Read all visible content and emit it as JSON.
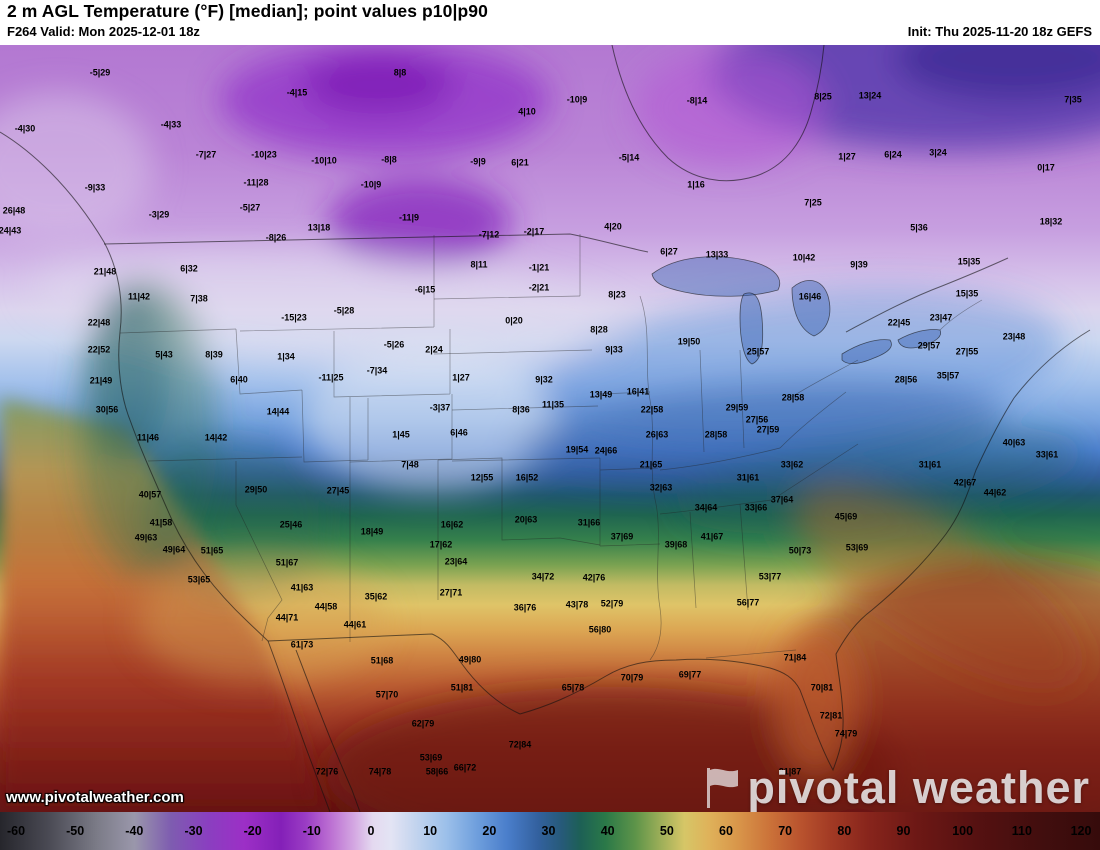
{
  "header": {
    "title": "2 m AGL Temperature (°F) [median]; point values p10|p90",
    "valid": "F264 Valid: Mon 2025-12-01 18z",
    "init": "Init: Thu 2025-11-20 18z GEFS"
  },
  "watermark": {
    "url_text": "www.pivotalweather.com",
    "brand": "pivotal weather"
  },
  "colorbar": {
    "min": -60,
    "max": 120,
    "ticks": [
      -60,
      -50,
      -40,
      -30,
      -20,
      -10,
      0,
      10,
      20,
      30,
      40,
      50,
      60,
      70,
      80,
      90,
      100,
      110,
      120
    ],
    "stops": [
      {
        "t": -60,
        "c": "#26262c"
      },
      {
        "t": -52,
        "c": "#4a4a54"
      },
      {
        "t": -44,
        "c": "#7c7c88"
      },
      {
        "t": -38,
        "c": "#9a97ab"
      },
      {
        "t": -32,
        "c": "#7e5cb0"
      },
      {
        "t": -26,
        "c": "#8a3fc0"
      },
      {
        "t": -20,
        "c": "#9c2fc6"
      },
      {
        "t": -14,
        "c": "#8420b8"
      },
      {
        "t": -10,
        "c": "#9a3cc4"
      },
      {
        "t": -6,
        "c": "#bb6ed2"
      },
      {
        "t": -2,
        "c": "#d4a8e2"
      },
      {
        "t": 1,
        "c": "#e4d9f0"
      },
      {
        "t": 4,
        "c": "#e3e4f4"
      },
      {
        "t": 8,
        "c": "#c3d4ee"
      },
      {
        "t": 13,
        "c": "#9cc0ea"
      },
      {
        "t": 18,
        "c": "#6f9fdd"
      },
      {
        "t": 23,
        "c": "#4a7ecb"
      },
      {
        "t": 28,
        "c": "#33619f"
      },
      {
        "t": 32,
        "c": "#265a78"
      },
      {
        "t": 35,
        "c": "#1d6055"
      },
      {
        "t": 39,
        "c": "#2a7848"
      },
      {
        "t": 44,
        "c": "#5e9449"
      },
      {
        "t": 48,
        "c": "#9bae58"
      },
      {
        "t": 52,
        "c": "#d6c667"
      },
      {
        "t": 56,
        "c": "#dfb25a"
      },
      {
        "t": 61,
        "c": "#d89449"
      },
      {
        "t": 66,
        "c": "#cb7239"
      },
      {
        "t": 71,
        "c": "#b9532e"
      },
      {
        "t": 76,
        "c": "#a23a24"
      },
      {
        "t": 82,
        "c": "#88251c"
      },
      {
        "t": 90,
        "c": "#6d1815"
      },
      {
        "t": 100,
        "c": "#551111"
      },
      {
        "t": 110,
        "c": "#420e0e"
      },
      {
        "t": 120,
        "c": "#360b0b"
      }
    ]
  },
  "map": {
    "points": [
      [
        100,
        73,
        "-5|29"
      ],
      [
        297,
        93,
        "-4|15"
      ],
      [
        400,
        73,
        "8|8"
      ],
      [
        527,
        112,
        "4|10"
      ],
      [
        577,
        100,
        "-10|9"
      ],
      [
        697,
        101,
        "-8|14"
      ],
      [
        823,
        97,
        "8|25"
      ],
      [
        870,
        96,
        "13|24"
      ],
      [
        1073,
        100,
        "7|35"
      ],
      [
        25,
        129,
        "-4|30"
      ],
      [
        171,
        125,
        "-4|33"
      ],
      [
        206,
        155,
        "-7|27"
      ],
      [
        264,
        155,
        "-10|23"
      ],
      [
        324,
        161,
        "-10|10"
      ],
      [
        389,
        160,
        "-8|8"
      ],
      [
        478,
        162,
        "-9|9"
      ],
      [
        520,
        163,
        "6|21"
      ],
      [
        629,
        158,
        "-5|14"
      ],
      [
        847,
        157,
        "1|27"
      ],
      [
        893,
        155,
        "6|24"
      ],
      [
        938,
        153,
        "3|24"
      ],
      [
        1046,
        168,
        "0|17"
      ],
      [
        95,
        188,
        "-9|33"
      ],
      [
        256,
        183,
        "-11|28"
      ],
      [
        371,
        185,
        "-10|9"
      ],
      [
        696,
        185,
        "1|16"
      ],
      [
        813,
        203,
        "7|25"
      ],
      [
        14,
        211,
        "26|48"
      ],
      [
        159,
        215,
        "-3|29"
      ],
      [
        250,
        208,
        "-5|27"
      ],
      [
        409,
        218,
        "-11|9"
      ],
      [
        613,
        227,
        "4|20"
      ],
      [
        1051,
        222,
        "18|32"
      ],
      [
        10,
        231,
        "24|43"
      ],
      [
        276,
        238,
        "-8|26"
      ],
      [
        319,
        228,
        "13|18"
      ],
      [
        489,
        235,
        "-7|12"
      ],
      [
        534,
        232,
        "-2|17"
      ],
      [
        919,
        228,
        "5|36"
      ],
      [
        105,
        272,
        "21|48"
      ],
      [
        189,
        269,
        "6|32"
      ],
      [
        479,
        265,
        "8|11"
      ],
      [
        539,
        268,
        "-1|21"
      ],
      [
        669,
        252,
        "6|27"
      ],
      [
        717,
        255,
        "13|33"
      ],
      [
        804,
        258,
        "10|42"
      ],
      [
        859,
        265,
        "9|39"
      ],
      [
        969,
        262,
        "15|35"
      ],
      [
        139,
        297,
        "11|42"
      ],
      [
        199,
        299,
        "7|38"
      ],
      [
        425,
        290,
        "-6|15"
      ],
      [
        539,
        288,
        "-2|21"
      ],
      [
        617,
        295,
        "8|23"
      ],
      [
        810,
        297,
        "16|46"
      ],
      [
        967,
        294,
        "15|35"
      ],
      [
        99,
        323,
        "22|48"
      ],
      [
        294,
        318,
        "-15|23"
      ],
      [
        344,
        311,
        "-5|28"
      ],
      [
        514,
        321,
        "0|20"
      ],
      [
        599,
        330,
        "8|28"
      ],
      [
        899,
        323,
        "22|45"
      ],
      [
        941,
        318,
        "23|47"
      ],
      [
        1014,
        337,
        "23|48"
      ],
      [
        99,
        350,
        "22|52"
      ],
      [
        164,
        355,
        "5|43"
      ],
      [
        214,
        355,
        "8|39"
      ],
      [
        286,
        357,
        "1|34"
      ],
      [
        394,
        345,
        "-5|26"
      ],
      [
        434,
        350,
        "2|24"
      ],
      [
        614,
        350,
        "9|33"
      ],
      [
        689,
        342,
        "19|50"
      ],
      [
        758,
        352,
        "25|57"
      ],
      [
        929,
        346,
        "29|57"
      ],
      [
        967,
        352,
        "27|55"
      ],
      [
        101,
        381,
        "21|49"
      ],
      [
        239,
        380,
        "6|40"
      ],
      [
        331,
        378,
        "-11|25"
      ],
      [
        377,
        371,
        "-7|34"
      ],
      [
        461,
        378,
        "1|27"
      ],
      [
        544,
        380,
        "9|32"
      ],
      [
        638,
        392,
        "16|41"
      ],
      [
        906,
        380,
        "28|56"
      ],
      [
        948,
        376,
        "35|57"
      ],
      [
        440,
        408,
        "-3|37"
      ],
      [
        521,
        410,
        "8|36"
      ],
      [
        553,
        405,
        "11|35"
      ],
      [
        601,
        395,
        "13|49"
      ],
      [
        652,
        410,
        "22|58"
      ],
      [
        737,
        408,
        "29|59"
      ],
      [
        793,
        398,
        "28|58"
      ],
      [
        757,
        420,
        "27|56"
      ],
      [
        107,
        410,
        "30|56"
      ],
      [
        278,
        412,
        "14|44"
      ],
      [
        148,
        438,
        "11|46"
      ],
      [
        216,
        438,
        "14|42"
      ],
      [
        401,
        435,
        "1|45"
      ],
      [
        459,
        433,
        "6|46"
      ],
      [
        657,
        435,
        "26|63"
      ],
      [
        716,
        435,
        "28|58"
      ],
      [
        768,
        430,
        "27|59"
      ],
      [
        1014,
        443,
        "40|63"
      ],
      [
        1047,
        455,
        "33|61"
      ],
      [
        410,
        465,
        "7|48"
      ],
      [
        482,
        478,
        "12|55"
      ],
      [
        527,
        478,
        "16|52"
      ],
      [
        577,
        450,
        "19|54"
      ],
      [
        606,
        451,
        "24|66"
      ],
      [
        651,
        465,
        "21|65"
      ],
      [
        748,
        478,
        "31|61"
      ],
      [
        792,
        465,
        "33|62"
      ],
      [
        930,
        465,
        "31|61"
      ],
      [
        965,
        483,
        "42|67"
      ],
      [
        995,
        493,
        "44|62"
      ],
      [
        150,
        495,
        "40|57"
      ],
      [
        256,
        490,
        "29|50"
      ],
      [
        338,
        491,
        "27|45"
      ],
      [
        661,
        488,
        "32|63"
      ],
      [
        706,
        508,
        "34|64"
      ],
      [
        756,
        508,
        "33|66"
      ],
      [
        782,
        500,
        "37|64"
      ],
      [
        161,
        523,
        "41|58"
      ],
      [
        146,
        538,
        "49|63"
      ],
      [
        174,
        550,
        "49|64"
      ],
      [
        212,
        551,
        "51|65"
      ],
      [
        291,
        525,
        "25|46"
      ],
      [
        372,
        532,
        "18|49"
      ],
      [
        452,
        525,
        "16|62"
      ],
      [
        441,
        545,
        "17|62"
      ],
      [
        526,
        520,
        "20|63"
      ],
      [
        589,
        523,
        "31|66"
      ],
      [
        622,
        537,
        "37|69"
      ],
      [
        676,
        545,
        "39|68"
      ],
      [
        712,
        537,
        "41|67"
      ],
      [
        846,
        517,
        "45|69"
      ],
      [
        800,
        551,
        "50|73"
      ],
      [
        857,
        548,
        "53|69"
      ],
      [
        199,
        580,
        "53|65"
      ],
      [
        287,
        563,
        "51|67"
      ],
      [
        302,
        588,
        "41|63"
      ],
      [
        376,
        597,
        "35|62"
      ],
      [
        456,
        562,
        "23|64"
      ],
      [
        451,
        593,
        "27|71"
      ],
      [
        543,
        577,
        "34|72"
      ],
      [
        594,
        578,
        "42|76"
      ],
      [
        770,
        577,
        "53|77"
      ],
      [
        748,
        603,
        "56|77"
      ],
      [
        326,
        607,
        "44|58"
      ],
      [
        525,
        608,
        "36|76"
      ],
      [
        577,
        605,
        "43|78"
      ],
      [
        612,
        604,
        "52|79"
      ],
      [
        287,
        618,
        "44|71"
      ],
      [
        355,
        625,
        "44|61"
      ],
      [
        600,
        630,
        "56|80"
      ],
      [
        302,
        645,
        "61|73"
      ],
      [
        382,
        661,
        "51|68"
      ],
      [
        470,
        660,
        "49|80"
      ],
      [
        573,
        688,
        "65|78"
      ],
      [
        632,
        678,
        "70|79"
      ],
      [
        690,
        675,
        "69|77"
      ],
      [
        795,
        658,
        "71|84"
      ],
      [
        387,
        695,
        "57|70"
      ],
      [
        462,
        688,
        "51|81"
      ],
      [
        822,
        688,
        "70|81"
      ],
      [
        423,
        724,
        "62|79"
      ],
      [
        520,
        745,
        "72|84"
      ],
      [
        831,
        716,
        "72|81"
      ],
      [
        846,
        734,
        "74|79"
      ],
      [
        431,
        758,
        "53|69"
      ],
      [
        437,
        772,
        "58|66"
      ],
      [
        465,
        768,
        "66|72"
      ],
      [
        380,
        772,
        "74|78"
      ],
      [
        327,
        772,
        "72|76"
      ],
      [
        790,
        772,
        "81|87"
      ]
    ]
  }
}
